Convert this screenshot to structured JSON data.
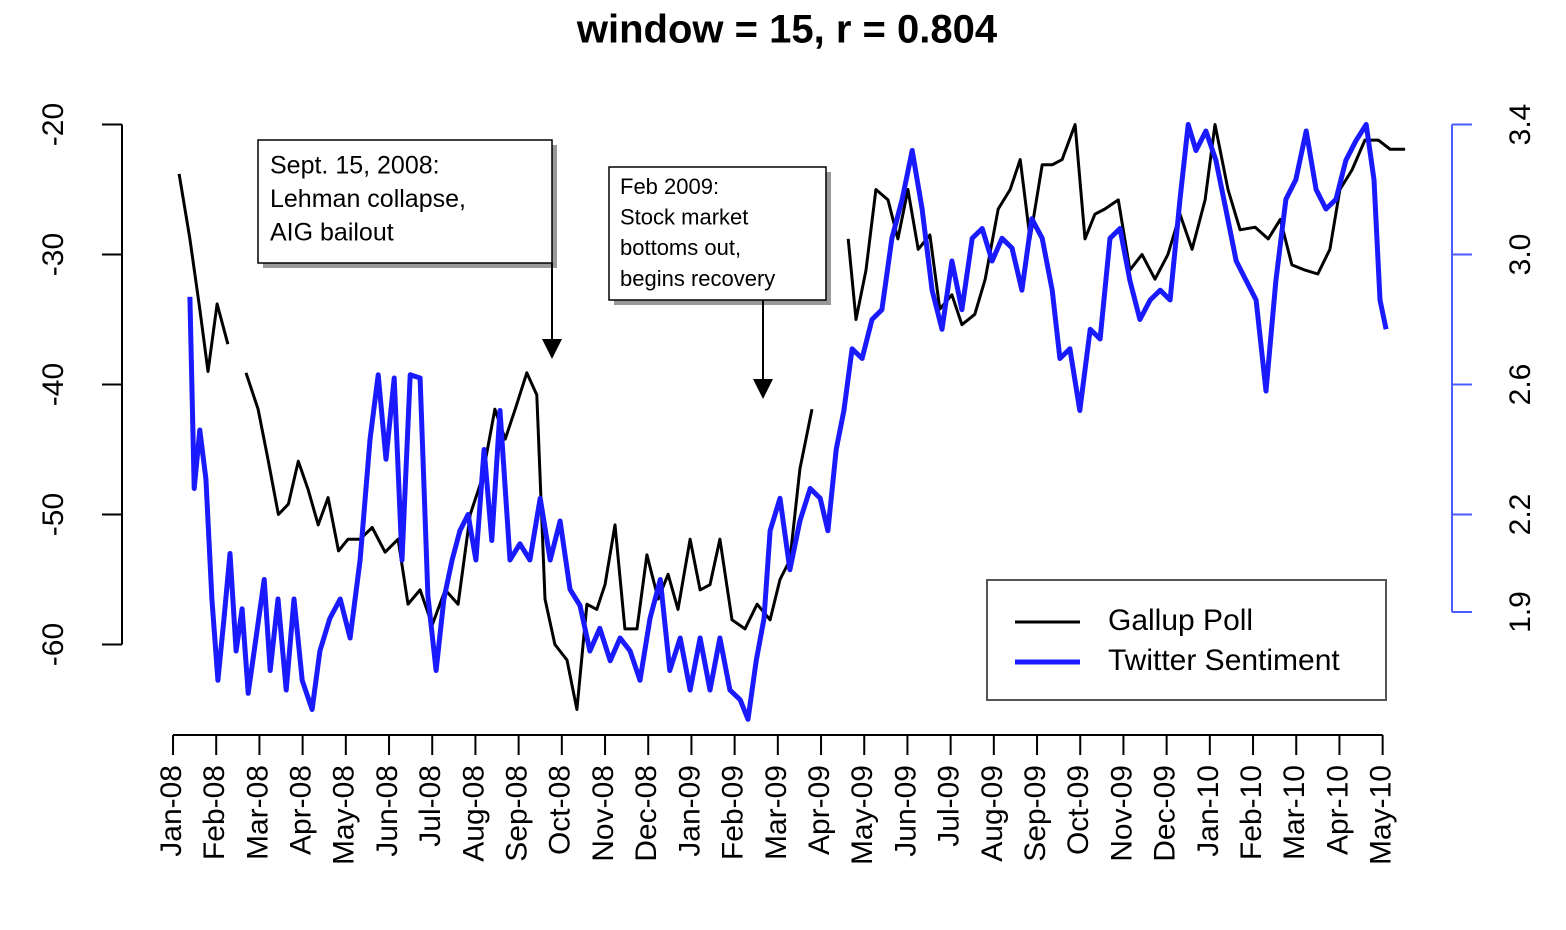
{
  "chart_data": {
    "type": "line",
    "title": "window = 15, r = 0.804",
    "xlim": [
      -1.1,
      29.55
    ],
    "xticks": [
      {
        "value": 0,
        "label": "Jan-08"
      },
      {
        "value": 1,
        "label": "Feb-08"
      },
      {
        "value": 2,
        "label": "Mar-08"
      },
      {
        "value": 3,
        "label": "Apr-08"
      },
      {
        "value": 4,
        "label": "May-08"
      },
      {
        "value": 5,
        "label": "Jun-08"
      },
      {
        "value": 6,
        "label": "Jul-08"
      },
      {
        "value": 7,
        "label": "Aug-08"
      },
      {
        "value": 8,
        "label": "Sep-08"
      },
      {
        "value": 9,
        "label": "Oct-08"
      },
      {
        "value": 10,
        "label": "Nov-08"
      },
      {
        "value": 11,
        "label": "Dec-08"
      },
      {
        "value": 12,
        "label": "Jan-09"
      },
      {
        "value": 13,
        "label": "Feb-09"
      },
      {
        "value": 14,
        "label": "Mar-09"
      },
      {
        "value": 15,
        "label": "Apr-09"
      },
      {
        "value": 16,
        "label": "May-09"
      },
      {
        "value": 17,
        "label": "Jun-09"
      },
      {
        "value": 18,
        "label": "Jul-09"
      },
      {
        "value": 19,
        "label": "Aug-09"
      },
      {
        "value": 20,
        "label": "Sep-09"
      },
      {
        "value": 21,
        "label": "Oct-09"
      },
      {
        "value": 22,
        "label": "Nov-09"
      },
      {
        "value": 23,
        "label": "Dec-09"
      },
      {
        "value": 24,
        "label": "Jan-10"
      },
      {
        "value": 25,
        "label": "Feb-10"
      },
      {
        "value": 26,
        "label": "Mar-10"
      },
      {
        "value": 27,
        "label": "Apr-10"
      },
      {
        "value": 28,
        "label": "May-10"
      }
    ],
    "ylim": [
      -66,
      -18.5
    ],
    "yticks": [
      -20,
      -30,
      -40,
      -50,
      -60
    ],
    "y2lim": [
      1.56,
      3.46
    ],
    "y2ticks": [
      1.9,
      2.2,
      2.6,
      3.0,
      3.4
    ],
    "y2color": "#4a5cff",
    "legend": "bottom right",
    "annotations": [
      {
        "lines": [
          "Sept. 15, 2008:",
          "Lehman collapse,",
          "AIG bailout"
        ]
      },
      {
        "lines": [
          "Feb 2009:",
          "Stock market",
          "bottoms out,",
          "begins recovery"
        ]
      }
    ],
    "series": [
      {
        "name": "Gallup Poll",
        "color": "#000000",
        "axis": "y",
        "x": [
          0.14,
          0.39,
          0.62,
          0.81,
          1.02,
          1.27,
          null,
          1.69,
          1.97,
          2.2,
          2.44,
          2.67,
          2.9,
          3.13,
          3.36,
          3.59,
          3.83,
          4.05,
          4.33,
          4.61,
          4.91,
          5.21,
          5.44,
          5.72,
          6.0,
          6.3,
          6.6,
          6.88,
          7.15,
          7.45,
          7.69,
          7.92,
          8.19,
          8.42,
          8.61,
          8.84,
          9.12,
          9.35,
          9.58,
          9.81,
          10.0,
          10.23,
          10.46,
          10.74,
          10.97,
          11.23,
          11.46,
          11.69,
          11.97,
          12.2,
          12.43,
          12.66,
          12.94,
          13.24,
          13.52,
          13.82,
          14.05,
          14.28,
          14.51,
          14.79,
          null,
          15.63,
          15.81,
          16.04,
          16.27,
          16.55,
          16.78,
          17.01,
          17.25,
          17.52,
          17.75,
          18.03,
          18.26,
          18.56,
          18.8,
          19.1,
          19.38,
          19.61,
          19.84,
          20.12,
          20.35,
          20.58,
          20.88,
          21.11,
          21.34,
          21.57,
          21.88,
          22.15,
          22.43,
          22.73,
          23.03,
          23.31,
          23.59,
          23.89,
          24.12,
          24.42,
          24.7,
          25.05,
          25.35,
          25.63,
          25.9,
          26.2,
          26.5,
          26.78,
          27.01,
          27.29,
          27.59,
          27.9,
          28.17,
          28.52
        ],
        "values": [
          -23.8,
          -28.8,
          -34.2,
          -39,
          -33.8,
          -36.9,
          null,
          -39.1,
          -41.9,
          -45.8,
          -50,
          -49.2,
          -45.9,
          -48.1,
          -50.8,
          -48.7,
          -52.8,
          -51.9,
          -51.9,
          -51,
          -52.9,
          -51.9,
          -56.9,
          -55.8,
          -58.5,
          -55.8,
          -56.9,
          -50,
          -47.3,
          -41.9,
          -44.2,
          -41.9,
          -39.1,
          -40.8,
          -56.5,
          -60,
          -61.2,
          -65,
          -56.9,
          -57.3,
          -55.4,
          -50.8,
          -58.8,
          -58.8,
          -53.1,
          -56.5,
          -54.6,
          -57.3,
          -51.9,
          -55.8,
          -55.4,
          -51.9,
          -58.1,
          -58.8,
          -56.9,
          -58.1,
          -55,
          -53.5,
          -46.5,
          -41.9,
          null,
          -28.8,
          -35,
          -31.2,
          -25,
          -25.8,
          -28.8,
          -25,
          -29.6,
          -28.5,
          -34.2,
          -33.1,
          -35.4,
          -34.6,
          -31.9,
          -26.5,
          -25,
          -22.7,
          -28.8,
          -23.1,
          -23.1,
          -22.7,
          -20,
          -28.8,
          -26.9,
          -26.5,
          -25.8,
          -31.2,
          -30,
          -31.9,
          -30,
          -26.9,
          -29.6,
          -25.8,
          -20,
          -25,
          -28.1,
          -27.9,
          -28.8,
          -27.3,
          -30.8,
          -31.2,
          -31.5,
          -29.6,
          -25,
          -23.5,
          -21.2,
          -21.2,
          -21.9,
          -21.9
        ]
      },
      {
        "name": "Twitter Sentiment",
        "color": "#1a1aff",
        "axis": "y2",
        "x": [
          0.39,
          0.49,
          0.62,
          0.76,
          0.9,
          1.04,
          1.18,
          1.32,
          1.46,
          1.6,
          1.74,
          1.92,
          2.11,
          2.25,
          2.43,
          2.62,
          2.8,
          2.99,
          3.22,
          3.4,
          3.63,
          3.87,
          4.1,
          4.33,
          4.56,
          4.75,
          4.93,
          5.12,
          5.3,
          5.49,
          5.72,
          5.9,
          6.09,
          6.27,
          6.46,
          6.64,
          6.83,
          7.01,
          7.2,
          7.38,
          7.57,
          7.8,
          8.03,
          8.26,
          8.5,
          8.73,
          8.96,
          9.19,
          9.42,
          9.65,
          9.88,
          10.12,
          10.35,
          10.58,
          10.81,
          11.04,
          11.28,
          11.5,
          11.74,
          11.97,
          12.2,
          12.43,
          12.66,
          12.89,
          13.13,
          13.31,
          13.5,
          13.68,
          13.82,
          14.05,
          14.28,
          14.51,
          14.75,
          14.98,
          15.16,
          15.35,
          15.53,
          15.72,
          15.95,
          16.18,
          16.41,
          16.64,
          16.88,
          17.11,
          17.34,
          17.57,
          17.8,
          18.03,
          18.26,
          18.5,
          18.73,
          18.96,
          19.19,
          19.42,
          19.65,
          19.88,
          20.12,
          20.35,
          20.53,
          20.76,
          20.99,
          21.23,
          21.46,
          21.69,
          21.92,
          22.15,
          22.38,
          22.62,
          22.85,
          23.08,
          23.31,
          23.5,
          23.68,
          23.91,
          24.14,
          24.37,
          24.61,
          24.84,
          25.07,
          25.3,
          25.53,
          25.76,
          25.99,
          26.23,
          26.46,
          26.69,
          26.92,
          27.15,
          27.38,
          27.62,
          27.8,
          27.94,
          28.08
        ],
        "values": [
          2.87,
          2.28,
          2.46,
          2.31,
          1.94,
          1.69,
          1.88,
          2.08,
          1.78,
          1.91,
          1.65,
          1.82,
          2.0,
          1.72,
          1.94,
          1.66,
          1.94,
          1.69,
          1.6,
          1.78,
          1.88,
          1.94,
          1.82,
          2.06,
          2.43,
          2.63,
          2.37,
          2.62,
          2.06,
          2.63,
          2.62,
          1.95,
          1.72,
          1.94,
          2.06,
          2.15,
          2.2,
          2.06,
          2.4,
          2.12,
          2.52,
          2.06,
          2.11,
          2.06,
          2.25,
          2.06,
          2.18,
          1.97,
          1.92,
          1.78,
          1.85,
          1.75,
          1.82,
          1.78,
          1.69,
          1.88,
          2.0,
          1.72,
          1.82,
          1.66,
          1.82,
          1.66,
          1.82,
          1.66,
          1.63,
          1.57,
          1.75,
          1.88,
          2.15,
          2.25,
          2.03,
          2.18,
          2.28,
          2.25,
          2.15,
          2.4,
          2.52,
          2.71,
          2.68,
          2.8,
          2.83,
          3.05,
          3.17,
          3.32,
          3.14,
          2.89,
          2.77,
          2.98,
          2.83,
          3.05,
          3.08,
          2.98,
          3.05,
          3.02,
          2.89,
          3.11,
          3.05,
          2.89,
          2.68,
          2.71,
          2.52,
          2.77,
          2.74,
          3.05,
          3.08,
          2.92,
          2.8,
          2.86,
          2.89,
          2.86,
          3.17,
          3.4,
          3.32,
          3.38,
          3.29,
          3.14,
          2.98,
          2.92,
          2.86,
          2.58,
          2.92,
          3.17,
          3.23,
          3.38,
          3.2,
          3.14,
          3.17,
          3.29,
          3.35,
          3.4,
          3.23,
          2.86,
          2.77
        ]
      }
    ]
  }
}
